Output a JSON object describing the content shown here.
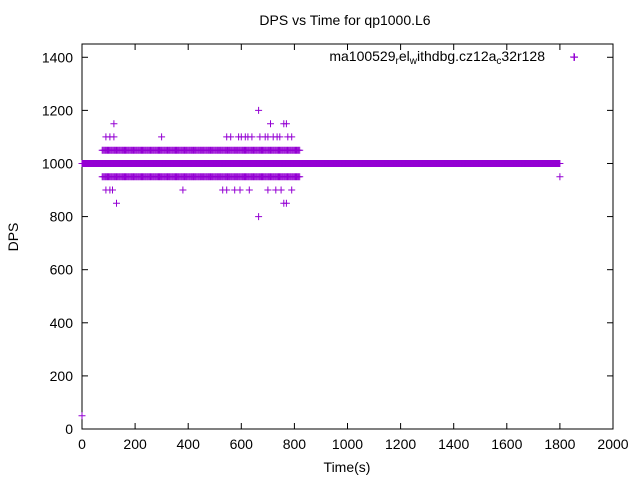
{
  "chart_data": {
    "type": "scatter",
    "title": "DPS vs Time for qp1000.L6",
    "xlabel": "Time(s)",
    "ylabel": "DPS",
    "xlim": [
      0,
      2000
    ],
    "ylim": [
      0,
      1450
    ],
    "xticks": [
      "0",
      "200",
      "400",
      "600",
      "800",
      "1000",
      "1200",
      "1400",
      "1600",
      "1800",
      "2000"
    ],
    "yticks": [
      "0",
      "200",
      "400",
      "600",
      "800",
      "1000",
      "1200",
      "1400"
    ],
    "grid": false,
    "legend_placement": "top-right",
    "marker": "+",
    "series": [
      {
        "name_parts": [
          "ma100529",
          "r",
          "el",
          "w",
          "ithdbg.cz12a",
          "c",
          "32r128"
        ],
        "color": "#9400d3",
        "dense_band": {
          "x_start": 0,
          "x_end": 1800,
          "x_step": 2,
          "y": 1000
        },
        "scatter_band": {
          "x_start": 76,
          "x_end": 820,
          "x_step": 4,
          "y_values": [
            1050,
            950
          ]
        },
        "points": [
          [
            0,
            50
          ],
          [
            1855,
            1400
          ],
          [
            1800,
            950
          ],
          [
            90,
            1100
          ],
          [
            105,
            1100
          ],
          [
            120,
            1100
          ],
          [
            120,
            1150
          ],
          [
            300,
            1100
          ],
          [
            545,
            1100
          ],
          [
            560,
            1100
          ],
          [
            590,
            1100
          ],
          [
            600,
            1100
          ],
          [
            615,
            1100
          ],
          [
            625,
            1100
          ],
          [
            640,
            1100
          ],
          [
            665,
            1200
          ],
          [
            670,
            1100
          ],
          [
            690,
            1100
          ],
          [
            700,
            1100
          ],
          [
            710,
            1150
          ],
          [
            720,
            1100
          ],
          [
            735,
            1100
          ],
          [
            745,
            1100
          ],
          [
            760,
            1150
          ],
          [
            770,
            1150
          ],
          [
            775,
            1100
          ],
          [
            790,
            1100
          ],
          [
            90,
            900
          ],
          [
            105,
            900
          ],
          [
            115,
            900
          ],
          [
            130,
            850
          ],
          [
            380,
            900
          ],
          [
            530,
            900
          ],
          [
            545,
            900
          ],
          [
            575,
            900
          ],
          [
            595,
            900
          ],
          [
            630,
            900
          ],
          [
            665,
            800
          ],
          [
            700,
            900
          ],
          [
            730,
            900
          ],
          [
            750,
            900
          ],
          [
            760,
            850
          ],
          [
            770,
            850
          ],
          [
            790,
            900
          ]
        ]
      }
    ]
  }
}
